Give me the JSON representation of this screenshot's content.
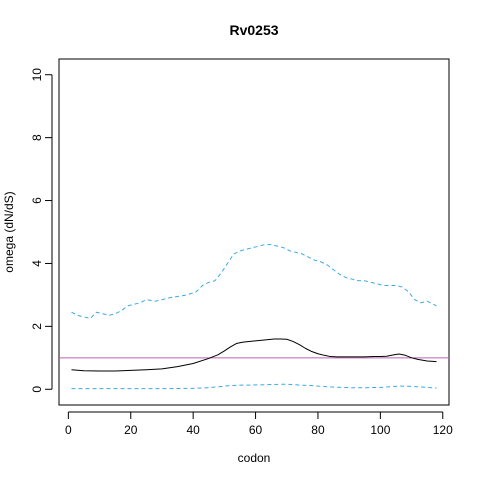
{
  "chart_data": {
    "type": "line",
    "title": "Rv0253",
    "xlabel": "codon",
    "ylabel": "omega (dN/dS)",
    "xlim": [
      -3,
      122
    ],
    "ylim": [
      -0.5,
      10.5
    ],
    "x_ticks": [
      0,
      20,
      40,
      60,
      80,
      100,
      120
    ],
    "y_ticks": [
      0,
      2,
      4,
      6,
      8,
      10
    ],
    "grid": false,
    "reference_line": {
      "y": 1,
      "color": "#c05fb4"
    },
    "series": [
      {
        "style": "solid",
        "color": "#000000",
        "x": [
          1,
          5,
          10,
          15,
          20,
          25,
          30,
          35,
          40,
          45,
          48,
          50,
          52,
          54,
          56,
          58,
          60,
          62,
          64,
          66,
          68,
          70,
          72,
          74,
          76,
          78,
          80,
          82,
          84,
          86,
          88,
          90,
          92,
          95,
          98,
          100,
          102,
          104,
          106,
          108,
          110,
          112,
          115,
          118
        ],
        "y": [
          0.62,
          0.59,
          0.58,
          0.58,
          0.6,
          0.62,
          0.65,
          0.72,
          0.82,
          0.98,
          1.1,
          1.22,
          1.35,
          1.46,
          1.5,
          1.52,
          1.54,
          1.56,
          1.58,
          1.6,
          1.6,
          1.59,
          1.52,
          1.42,
          1.3,
          1.2,
          1.13,
          1.08,
          1.04,
          1.03,
          1.03,
          1.03,
          1.03,
          1.03,
          1.04,
          1.04,
          1.05,
          1.09,
          1.12,
          1.08,
          1.0,
          0.95,
          0.9,
          0.88
        ]
      },
      {
        "style": "dashed",
        "color": "#3fa9e0",
        "x": [
          1,
          3,
          5,
          7,
          9,
          11,
          13,
          15,
          17,
          19,
          21,
          23,
          25,
          28,
          30,
          32,
          35,
          38,
          41,
          43,
          45,
          47,
          49,
          51,
          53,
          55,
          57,
          59,
          61,
          63,
          65,
          67,
          69,
          71,
          73,
          75,
          77,
          79,
          81,
          83,
          85,
          87,
          89,
          91,
          93,
          95,
          97,
          99,
          101,
          103,
          105,
          107,
          109,
          111,
          113,
          115,
          117,
          118
        ],
        "y": [
          2.45,
          2.35,
          2.3,
          2.25,
          2.45,
          2.4,
          2.35,
          2.4,
          2.5,
          2.65,
          2.7,
          2.75,
          2.85,
          2.8,
          2.85,
          2.9,
          2.95,
          3.0,
          3.1,
          3.3,
          3.4,
          3.45,
          3.7,
          4.0,
          4.3,
          4.4,
          4.45,
          4.5,
          4.55,
          4.6,
          4.6,
          4.55,
          4.5,
          4.4,
          4.35,
          4.3,
          4.2,
          4.1,
          4.05,
          3.95,
          3.8,
          3.65,
          3.55,
          3.5,
          3.45,
          3.45,
          3.4,
          3.35,
          3.3,
          3.3,
          3.3,
          3.25,
          3.1,
          2.85,
          2.75,
          2.8,
          2.7,
          2.65
        ]
      },
      {
        "style": "dashed",
        "color": "#3fa9e0",
        "x": [
          1,
          10,
          20,
          30,
          40,
          45,
          50,
          52,
          55,
          58,
          60,
          62,
          65,
          68,
          70,
          72,
          75,
          78,
          80,
          85,
          90,
          95,
          100,
          103,
          106,
          108,
          110,
          112,
          115,
          118
        ],
        "y": [
          0.02,
          0.02,
          0.02,
          0.02,
          0.03,
          0.05,
          0.1,
          0.12,
          0.13,
          0.13,
          0.14,
          0.14,
          0.15,
          0.16,
          0.16,
          0.15,
          0.13,
          0.12,
          0.1,
          0.07,
          0.05,
          0.05,
          0.06,
          0.08,
          0.1,
          0.1,
          0.09,
          0.08,
          0.06,
          0.04
        ]
      }
    ]
  }
}
